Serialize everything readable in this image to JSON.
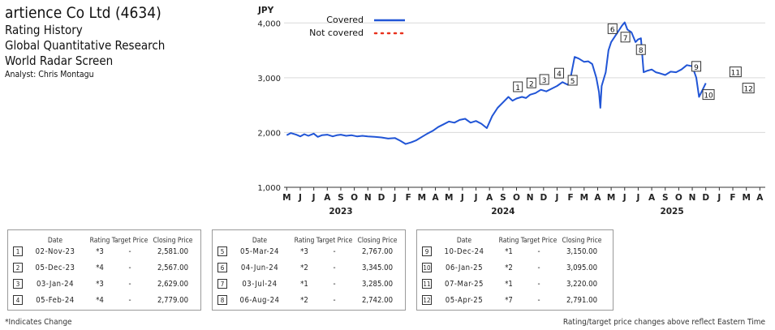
{
  "header": {
    "company": "artience Co Ltd (4634)",
    "lines": [
      "Rating History",
      "Global Quantitative Research",
      "World Radar Screen"
    ],
    "analyst": "Analyst: Chris Montagu"
  },
  "chart_data": {
    "type": "line",
    "ylabel": "JPY",
    "ylim": [
      1000,
      4300
    ],
    "yticks": [
      1000,
      2000,
      3000,
      4000
    ],
    "ytick_labels": [
      "1,000",
      "2,000",
      "3,000",
      "4,000"
    ],
    "month_labels": [
      "M",
      "J",
      "J",
      "A",
      "S",
      "O",
      "N",
      "D",
      "J",
      "F",
      "M",
      "A",
      "M",
      "J",
      "J",
      "A",
      "S",
      "O",
      "N",
      "D",
      "J",
      "F",
      "M",
      "A",
      "M",
      "J",
      "J",
      "A",
      "S",
      "O",
      "N",
      "D",
      "J",
      "F",
      "M",
      "A"
    ],
    "year_labels": [
      {
        "label": "2023",
        "month_index": 4
      },
      {
        "label": "2024",
        "month_index": 16
      },
      {
        "label": "2025",
        "month_index": 28.5
      }
    ],
    "legend": [
      {
        "name": "Covered",
        "style": "solid",
        "color": "#2155d6"
      },
      {
        "name": "Not covered",
        "style": "dotted",
        "color": "#e8321e"
      }
    ],
    "legend_placement": "top-left",
    "grid": "horizontal",
    "series": [
      {
        "name": "Covered",
        "color": "#2155d6",
        "points": [
          [
            0.0,
            1950
          ],
          [
            0.3,
            1990
          ],
          [
            0.7,
            1960
          ],
          [
            1.0,
            1930
          ],
          [
            1.3,
            1970
          ],
          [
            1.6,
            1940
          ],
          [
            2.0,
            1980
          ],
          [
            2.3,
            1920
          ],
          [
            2.6,
            1950
          ],
          [
            3.0,
            1960
          ],
          [
            3.4,
            1930
          ],
          [
            3.7,
            1950
          ],
          [
            4.0,
            1960
          ],
          [
            4.4,
            1940
          ],
          [
            4.8,
            1950
          ],
          [
            5.2,
            1930
          ],
          [
            5.6,
            1940
          ],
          [
            6.0,
            1930
          ],
          [
            6.5,
            1920
          ],
          [
            7.0,
            1910
          ],
          [
            7.5,
            1890
          ],
          [
            8.0,
            1900
          ],
          [
            8.4,
            1850
          ],
          [
            8.8,
            1790
          ],
          [
            9.2,
            1820
          ],
          [
            9.6,
            1860
          ],
          [
            10.0,
            1920
          ],
          [
            10.4,
            1980
          ],
          [
            10.8,
            2030
          ],
          [
            11.2,
            2100
          ],
          [
            11.6,
            2150
          ],
          [
            12.0,
            2200
          ],
          [
            12.4,
            2180
          ],
          [
            12.8,
            2230
          ],
          [
            13.2,
            2250
          ],
          [
            13.6,
            2180
          ],
          [
            14.0,
            2210
          ],
          [
            14.4,
            2160
          ],
          [
            14.8,
            2080
          ],
          [
            15.2,
            2300
          ],
          [
            15.6,
            2450
          ],
          [
            16.0,
            2550
          ],
          [
            16.4,
            2650
          ],
          [
            16.7,
            2580
          ],
          [
            17.0,
            2620
          ],
          [
            17.4,
            2650
          ],
          [
            17.7,
            2630
          ],
          [
            18.0,
            2690
          ],
          [
            18.4,
            2720
          ],
          [
            18.8,
            2780
          ],
          [
            19.2,
            2750
          ],
          [
            19.6,
            2800
          ],
          [
            20.0,
            2850
          ],
          [
            20.4,
            2920
          ],
          [
            20.8,
            2870
          ],
          [
            21.0,
            3000
          ],
          [
            21.3,
            3380
          ],
          [
            21.6,
            3350
          ],
          [
            22.0,
            3290
          ],
          [
            22.3,
            3300
          ],
          [
            22.6,
            3250
          ],
          [
            22.9,
            3000
          ],
          [
            23.1,
            2740
          ],
          [
            23.2,
            2450
          ],
          [
            23.3,
            2850
          ],
          [
            23.6,
            3100
          ],
          [
            23.8,
            3500
          ],
          [
            24.0,
            3650
          ],
          [
            24.4,
            3800
          ],
          [
            24.8,
            3950
          ],
          [
            25.0,
            4010
          ],
          [
            25.2,
            3880
          ],
          [
            25.5,
            3830
          ],
          [
            25.8,
            3650
          ],
          [
            26.0,
            3700
          ],
          [
            26.2,
            3720
          ],
          [
            26.4,
            3100
          ],
          [
            26.7,
            3130
          ],
          [
            27.0,
            3150
          ],
          [
            27.3,
            3100
          ],
          [
            27.6,
            3080
          ],
          [
            28.0,
            3050
          ],
          [
            28.4,
            3110
          ],
          [
            28.8,
            3100
          ],
          [
            29.2,
            3150
          ],
          [
            29.6,
            3230
          ],
          [
            30.0,
            3210
          ],
          [
            30.3,
            3000
          ],
          [
            30.5,
            2650
          ],
          [
            30.8,
            2800
          ],
          [
            31.0,
            2900
          ]
        ]
      }
    ],
    "rating_markers": [
      {
        "n": "1",
        "month": 17.1
      },
      {
        "n": "2",
        "month": 18.1
      },
      {
        "n": "3",
        "month": 19.05
      },
      {
        "n": "4",
        "month": 20.15
      },
      {
        "n": "5",
        "month": 21.15
      },
      {
        "n": "6",
        "month": 24.1
      },
      {
        "n": "7",
        "month": 25.05
      },
      {
        "n": "8",
        "month": 26.2
      },
      {
        "n": "9",
        "month": 30.3
      },
      {
        "n": "10",
        "month": 31.2
      },
      {
        "n": "11",
        "month": 33.2
      },
      {
        "n": "12",
        "month": 34.15
      }
    ]
  },
  "tables": [
    {
      "headers": [
        "Date",
        "Rating",
        "Target Price",
        "Closing Price"
      ],
      "rows": [
        {
          "n": "1",
          "date": "02-Nov-23",
          "rating": "*3",
          "target": "-",
          "close": "2,581.00"
        },
        {
          "n": "2",
          "date": "05-Dec-23",
          "rating": "*4",
          "target": "-",
          "close": "2,567.00"
        },
        {
          "n": "3",
          "date": "03-Jan-24",
          "rating": "*3",
          "target": "-",
          "close": "2,629.00"
        },
        {
          "n": "4",
          "date": "05-Feb-24",
          "rating": "*4",
          "target": "-",
          "close": "2,779.00"
        }
      ]
    },
    {
      "headers": [
        "Date",
        "Rating",
        "Target Price",
        "Closing Price"
      ],
      "rows": [
        {
          "n": "5",
          "date": "05-Mar-24",
          "rating": "*3",
          "target": "-",
          "close": "2,767.00"
        },
        {
          "n": "6",
          "date": "04-Jun-24",
          "rating": "*2",
          "target": "-",
          "close": "3,345.00"
        },
        {
          "n": "7",
          "date": "03-Jul-24",
          "rating": "*1",
          "target": "-",
          "close": "3,285.00"
        },
        {
          "n": "8",
          "date": "06-Aug-24",
          "rating": "*2",
          "target": "-",
          "close": "2,742.00"
        }
      ]
    },
    {
      "headers": [
        "Date",
        "Rating",
        "Target Price",
        "Closing Price"
      ],
      "rows": [
        {
          "n": "9",
          "date": "10-Dec-24",
          "rating": "*1",
          "target": "-",
          "close": "3,150.00"
        },
        {
          "n": "10",
          "date": "06-Jan-25",
          "rating": "*2",
          "target": "-",
          "close": "3,095.00"
        },
        {
          "n": "11",
          "date": "07-Mar-25",
          "rating": "*1",
          "target": "-",
          "close": "3,220.00"
        },
        {
          "n": "12",
          "date": "05-Apr-25",
          "rating": "*7",
          "target": "-",
          "close": "2,791.00"
        }
      ]
    }
  ],
  "footer": {
    "left": "*Indicates Change",
    "right": "Rating/target price changes above reflect Eastern Time"
  }
}
